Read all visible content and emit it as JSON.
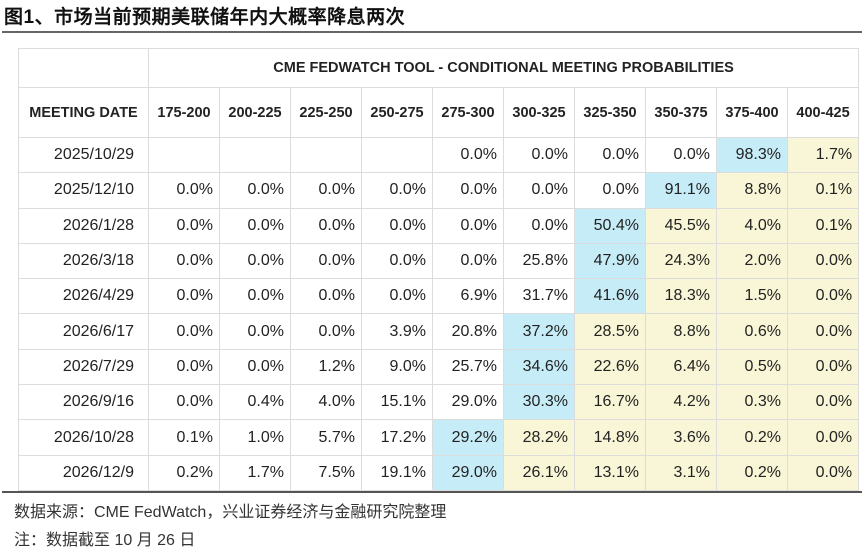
{
  "title": "图1、市场当前预期美联储年内大概率降息两次",
  "table": {
    "caption": "CME FEDWATCH TOOL - CONDITIONAL MEETING PROBABILITIES",
    "date_header": "MEETING DATE",
    "columns": [
      "175-200",
      "200-225",
      "225-250",
      "250-275",
      "275-300",
      "300-325",
      "325-350",
      "350-375",
      "375-400",
      "400-425"
    ],
    "highlight_colors": {
      "max": "#c6ecf7",
      "above": "#f8f6d6"
    },
    "rows": [
      {
        "date": "2025/10/29",
        "values": [
          "",
          "",
          "",
          "",
          "0.0%",
          "0.0%",
          "0.0%",
          "0.0%",
          "98.3%",
          "1.7%"
        ],
        "max_col": 8
      },
      {
        "date": "2025/12/10",
        "values": [
          "0.0%",
          "0.0%",
          "0.0%",
          "0.0%",
          "0.0%",
          "0.0%",
          "0.0%",
          "91.1%",
          "8.8%",
          "0.1%"
        ],
        "max_col": 7
      },
      {
        "date": "2026/1/28",
        "values": [
          "0.0%",
          "0.0%",
          "0.0%",
          "0.0%",
          "0.0%",
          "0.0%",
          "50.4%",
          "45.5%",
          "4.0%",
          "0.1%"
        ],
        "max_col": 6
      },
      {
        "date": "2026/3/18",
        "values": [
          "0.0%",
          "0.0%",
          "0.0%",
          "0.0%",
          "0.0%",
          "25.8%",
          "47.9%",
          "24.3%",
          "2.0%",
          "0.0%"
        ],
        "max_col": 6
      },
      {
        "date": "2026/4/29",
        "values": [
          "0.0%",
          "0.0%",
          "0.0%",
          "0.0%",
          "6.9%",
          "31.7%",
          "41.6%",
          "18.3%",
          "1.5%",
          "0.0%"
        ],
        "max_col": 6
      },
      {
        "date": "2026/6/17",
        "values": [
          "0.0%",
          "0.0%",
          "0.0%",
          "3.9%",
          "20.8%",
          "37.2%",
          "28.5%",
          "8.8%",
          "0.6%",
          "0.0%"
        ],
        "max_col": 5
      },
      {
        "date": "2026/7/29",
        "values": [
          "0.0%",
          "0.0%",
          "1.2%",
          "9.0%",
          "25.7%",
          "34.6%",
          "22.6%",
          "6.4%",
          "0.5%",
          "0.0%"
        ],
        "max_col": 5
      },
      {
        "date": "2026/9/16",
        "values": [
          "0.0%",
          "0.4%",
          "4.0%",
          "15.1%",
          "29.0%",
          "30.3%",
          "16.7%",
          "4.2%",
          "0.3%",
          "0.0%"
        ],
        "max_col": 5
      },
      {
        "date": "2026/10/28",
        "values": [
          "0.1%",
          "1.0%",
          "5.7%",
          "17.2%",
          "29.2%",
          "28.2%",
          "14.8%",
          "3.6%",
          "0.2%",
          "0.0%"
        ],
        "max_col": 4
      },
      {
        "date": "2026/12/9",
        "values": [
          "0.2%",
          "1.7%",
          "7.5%",
          "19.1%",
          "29.0%",
          "26.1%",
          "13.1%",
          "3.1%",
          "0.2%",
          "0.0%"
        ],
        "max_col": 4
      }
    ]
  },
  "source": "数据来源：CME FedWatch，兴业证券经济与金融研究院整理",
  "note": "注：数据截至 10 月 26 日"
}
